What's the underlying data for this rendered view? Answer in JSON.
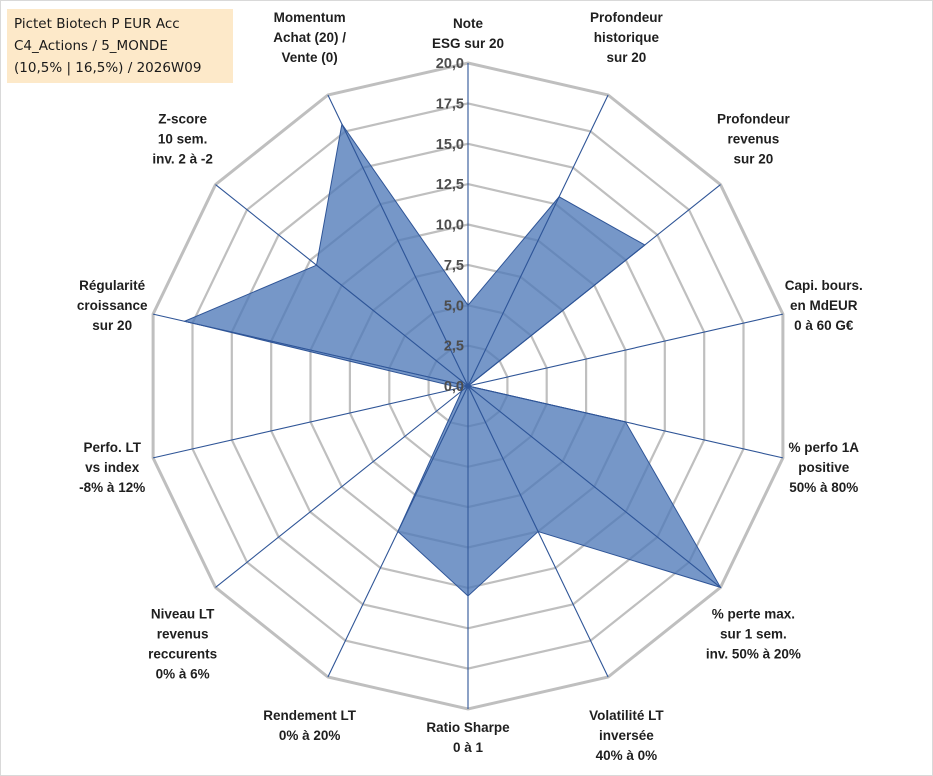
{
  "title_box": {
    "line1": "Pictet Biotech P EUR Acc",
    "line2": "C4_Actions / 5_MONDE",
    "line3": "(10,5% | 16,5%) / 2026W09"
  },
  "chart_data": {
    "type": "radar",
    "title": "Pictet Biotech P EUR Acc",
    "rmin": 0,
    "rmax": 20,
    "tick_step": 2.5,
    "ticks": [
      "0,0",
      "2,5",
      "5,0",
      "7,5",
      "10,0",
      "12,5",
      "15,0",
      "17,5",
      "20,0"
    ],
    "axes": [
      [
        "Note",
        "ESG sur 20"
      ],
      [
        "Profondeur",
        "historique",
        "sur 20"
      ],
      [
        "Profondeur",
        "revenus",
        "sur 20"
      ],
      [
        "Capi. bours.",
        "en MdEUR",
        "0 à 60 G€"
      ],
      [
        "% perfo 1A",
        "positive",
        "50% à 80%"
      ],
      [
        "% perte max.",
        "sur 1 sem.",
        "inv. 50% à 20%"
      ],
      [
        "Volatilité LT",
        "inversée",
        "40% à 0%"
      ],
      [
        "Ratio Sharpe",
        "0 à 1"
      ],
      [
        "Rendement LT",
        "0% à 20%"
      ],
      [
        "Niveau LT",
        "revenus",
        "reccurents",
        "0% à 6%"
      ],
      [
        "Perfo. LT",
        "vs index",
        "-8% à 12%"
      ],
      [
        "Régularité",
        "croissance",
        "sur 20"
      ],
      [
        "Z-score",
        "10 sem.",
        "inv. 2 à -2"
      ],
      [
        "Momentum",
        "Achat (20) /",
        "Vente (0)"
      ]
    ],
    "series": [
      {
        "name": "Pictet Biotech P EUR Acc",
        "values": [
          5.0,
          13.0,
          14.0,
          0.0,
          10.0,
          20.0,
          10.0,
          13.0,
          10.0,
          0.5,
          0.5,
          18.0,
          12.0,
          18.0
        ]
      }
    ],
    "colors": {
      "fill": "#4f7ab8",
      "fill_opacity": 0.78,
      "spoke": "#2f5597",
      "grid": "#bfbfbf",
      "title_box_bg": "#fde9c9"
    }
  }
}
